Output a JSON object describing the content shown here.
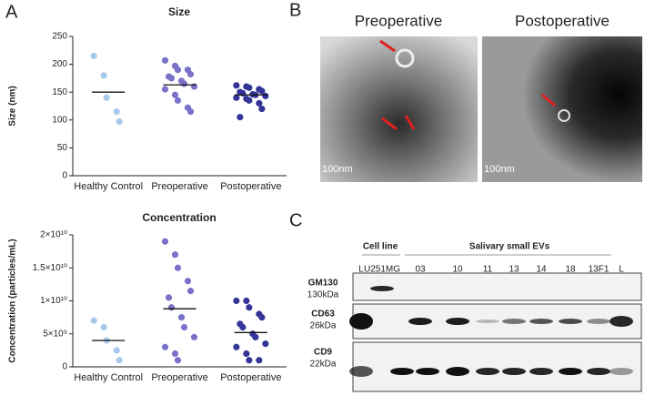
{
  "panels": {
    "a": "A",
    "b": "B",
    "c": "C"
  },
  "chart_data": [
    {
      "type": "strip",
      "title": "Size",
      "y_label": "Size (nm)",
      "ylim": [
        0,
        250
      ],
      "yticks": [
        0,
        50,
        100,
        150,
        200,
        250
      ],
      "groups": [
        {
          "name": "Healthy Control",
          "color": "#a9c9ec",
          "values": [
            215,
            180,
            140,
            115,
            97
          ],
          "mean": 150
        },
        {
          "name": "Preoperative",
          "color": "#7a72c9",
          "values": [
            207,
            197,
            190,
            190,
            182,
            178,
            175,
            170,
            165,
            160,
            155,
            145,
            135,
            122,
            115
          ],
          "mean": 163
        },
        {
          "name": "Postoperative",
          "color": "#343597",
          "values": [
            162,
            160,
            158,
            155,
            152,
            150,
            148,
            146,
            145,
            143,
            140,
            138,
            135,
            130,
            120,
            105
          ],
          "mean": 145
        }
      ]
    },
    {
      "type": "strip",
      "title": "Concentration",
      "y_label": "Concentration (particles/mL)",
      "ylim": [
        0,
        20000000000
      ],
      "yticks": [
        0,
        {
          "value": 5000000000,
          "label": "5×10⁹"
        },
        {
          "value": 10000000000,
          "label": "1×10¹⁰"
        },
        {
          "value": 15000000000,
          "label": "1.5×10¹⁰"
        },
        {
          "value": 20000000000,
          "label": "2×10¹⁰"
        }
      ],
      "groups": [
        {
          "name": "Healthy Control",
          "color": "#a9c9ec",
          "values": [
            7000000000,
            6000000000,
            4000000000,
            2500000000,
            1000000000
          ],
          "mean": 4000000000
        },
        {
          "name": "Preoperative",
          "color": "#7a72c9",
          "values": [
            19000000000,
            17000000000,
            15000000000,
            13000000000,
            11500000000,
            10500000000,
            9000000000,
            7500000000,
            6000000000,
            4500000000,
            3000000000,
            2000000000,
            1000000000
          ],
          "mean": 8800000000
        },
        {
          "name": "Postoperative",
          "color": "#343597",
          "values": [
            10000000000,
            10000000000,
            9000000000,
            8000000000,
            7500000000,
            6500000000,
            6000000000,
            5000000000,
            4500000000,
            3500000000,
            3000000000,
            2000000000,
            1000000000,
            1000000000
          ],
          "mean": 5200000000
        }
      ]
    }
  ],
  "microscopy": {
    "images": [
      {
        "title": "Preoperative",
        "scale": "100nm"
      },
      {
        "title": "Postoperative",
        "scale": "100nm"
      }
    ]
  },
  "blot": {
    "header_cell_line": "Cell line",
    "header_evs": "Salivary small EVs",
    "lanes": [
      "L",
      "U251MG",
      "03",
      "10",
      "11",
      "13",
      "14",
      "18",
      "13F1",
      "L"
    ],
    "rows": [
      {
        "protein": "GM130",
        "size": "130kDa"
      },
      {
        "protein": "CD63",
        "size": "26kDa"
      },
      {
        "protein": "CD9",
        "size": "22kDa"
      }
    ]
  }
}
